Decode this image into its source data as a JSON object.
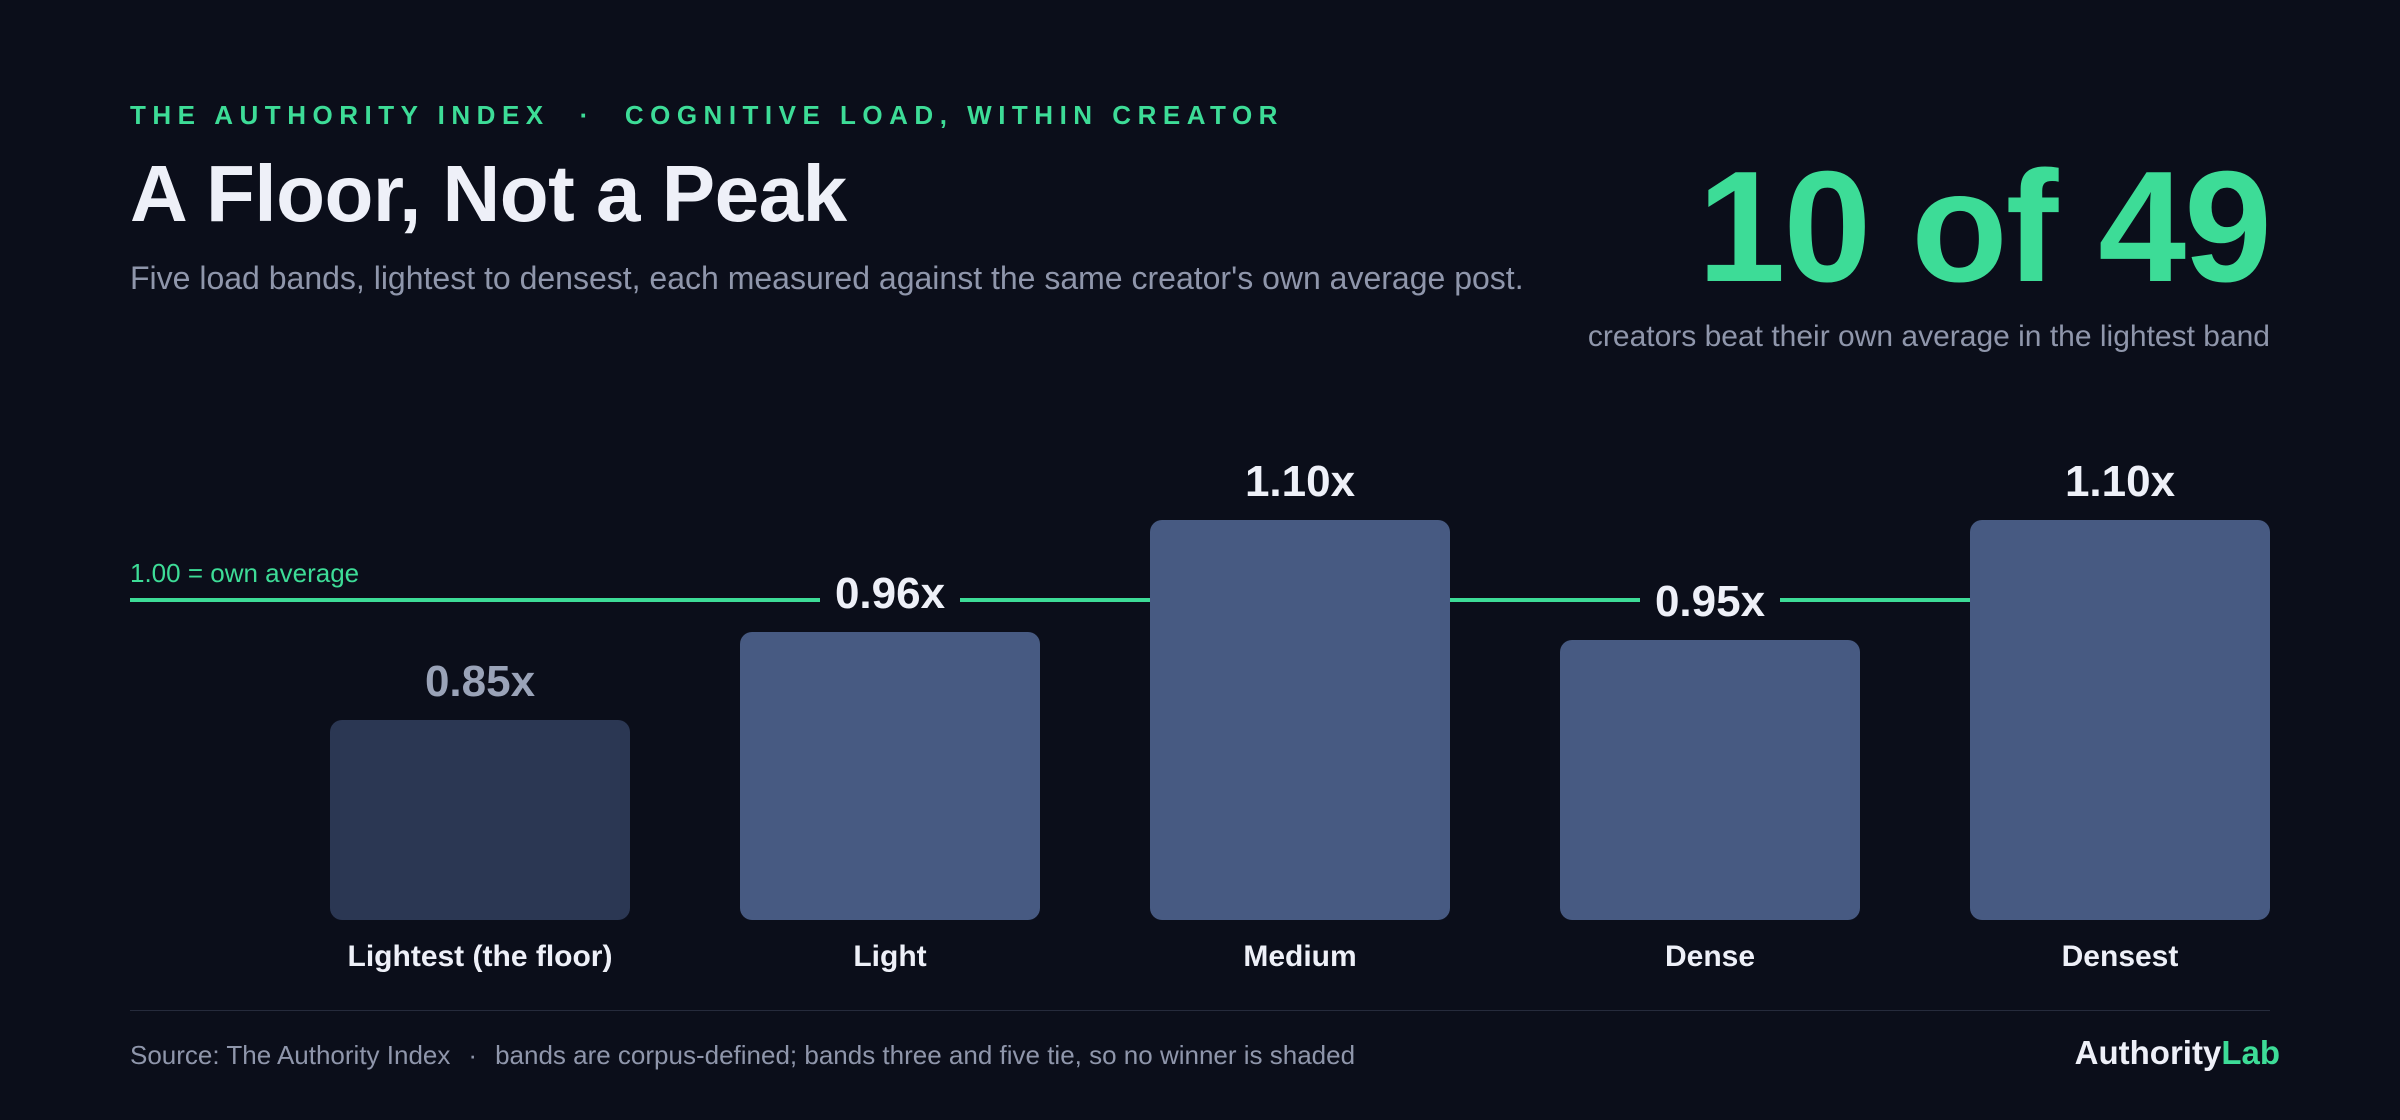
{
  "header": {
    "eyebrow_left": "THE AUTHORITY INDEX",
    "eyebrow_sep": "·",
    "eyebrow_right": "COGNITIVE LOAD, WITHIN CREATOR",
    "title": "A Floor, Not a Peak",
    "subtitle": "Five load bands, lightest to densest, each measured against the same creator's own average post."
  },
  "stat": {
    "value": "10 of 49",
    "caption": "creators beat their own average in the lightest band"
  },
  "chart_data": {
    "type": "bar",
    "categories": [
      "Lightest (the floor)",
      "Light",
      "Medium",
      "Dense",
      "Densest"
    ],
    "values": [
      0.85,
      0.96,
      1.1,
      0.95,
      1.1
    ],
    "value_labels": [
      "0.85x",
      "0.96x",
      "1.10x",
      "0.95x",
      "1.10x"
    ],
    "reference_line": {
      "value": 1.0,
      "label": "1.00 = own average"
    },
    "ylim": [
      0.6,
      1.1
    ],
    "grid": false,
    "colors": {
      "floor_bar": "#2b3753",
      "bar": "#475a82",
      "reference": "#3ddc97",
      "floor_label": "#9aa3b8",
      "label": "#eef0f8"
    }
  },
  "footer": {
    "source": "Source: The Authority Index",
    "sep": "·",
    "note": "bands are corpus-defined; bands three and five tie, so no winner is shaded",
    "brand_a": "Authority",
    "brand_b": "Lab"
  }
}
